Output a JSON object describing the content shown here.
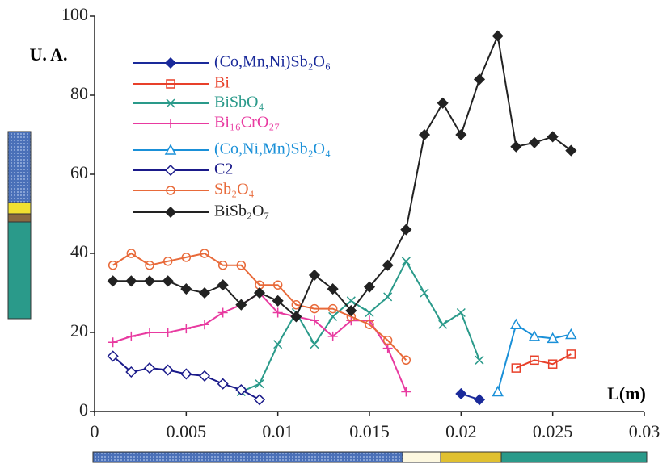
{
  "chart_data": {
    "type": "line",
    "ylabel": "U. A.",
    "xlabel": "L(m)",
    "xlim": [
      0,
      0.03
    ],
    "xticks": [
      0,
      0.005,
      0.01,
      0.015,
      0.02,
      0.025,
      0.03
    ],
    "ylim": [
      0,
      100
    ],
    "yticks": [
      0,
      20,
      40,
      60,
      80,
      100
    ],
    "series": [
      {
        "name": "(Co,Mn,Ni)Sb₂O₆",
        "color": "#1a2a9a",
        "marker": "filled-diamond",
        "x": [
          0.02,
          0.021
        ],
        "values": [
          4.5,
          3
        ]
      },
      {
        "name": "Bi",
        "color": "#e8402a",
        "marker": "square",
        "x": [
          0.023,
          0.024,
          0.025,
          0.026
        ],
        "values": [
          11,
          13,
          12,
          14.5
        ]
      },
      {
        "name": "BiSbO₄",
        "color": "#2a9a8a",
        "marker": "x",
        "x": [
          0.008,
          0.009,
          0.01,
          0.011,
          0.012,
          0.013,
          0.014,
          0.015,
          0.016,
          0.017,
          0.018,
          0.019,
          0.02,
          0.021
        ],
        "values": [
          5,
          7,
          17,
          25,
          17,
          24,
          28,
          25,
          29,
          38,
          30,
          22,
          25,
          13
        ]
      },
      {
        "name": "Bi₁₆CrO₂₇",
        "color": "#e83aa0",
        "marker": "plus",
        "x": [
          0.001,
          0.002,
          0.003,
          0.004,
          0.005,
          0.006,
          0.007,
          0.008,
          0.009,
          0.01,
          0.011,
          0.012,
          0.013,
          0.014,
          0.015,
          0.016,
          0.017
        ],
        "values": [
          17.5,
          19,
          20,
          20,
          21,
          22,
          25,
          27,
          30,
          25,
          24,
          23,
          19,
          23,
          23,
          16,
          5
        ]
      },
      {
        "name": "(Co,Ni,Mn)Sb₂O₄",
        "color": "#1a90d8",
        "marker": "triangle",
        "x": [
          0.022,
          0.023,
          0.024,
          0.025,
          0.026
        ],
        "values": [
          5,
          22,
          19,
          18.5,
          19.5
        ]
      },
      {
        "name": "C2",
        "color": "#1a1a8a",
        "marker": "diamond",
        "x": [
          0.001,
          0.002,
          0.003,
          0.004,
          0.005,
          0.006,
          0.007,
          0.008,
          0.009
        ],
        "values": [
          14,
          10,
          11,
          10.5,
          9.5,
          9,
          7,
          5.5,
          3
        ]
      },
      {
        "name": "Sb₂O₄",
        "color": "#e86a3a",
        "marker": "circle",
        "x": [
          0.001,
          0.002,
          0.003,
          0.004,
          0.005,
          0.006,
          0.007,
          0.008,
          0.009,
          0.01,
          0.011,
          0.012,
          0.013,
          0.014,
          0.015,
          0.016,
          0.017
        ],
        "values": [
          37,
          40,
          37,
          38,
          39,
          40,
          37,
          37,
          32,
          32,
          27,
          26,
          26,
          24,
          22,
          18,
          13
        ]
      },
      {
        "name": "BiSb₂O₇",
        "color": "#222222",
        "marker": "filled-diamond",
        "x": [
          0.001,
          0.002,
          0.003,
          0.004,
          0.005,
          0.006,
          0.007,
          0.008,
          0.009,
          0.01,
          0.011,
          0.012,
          0.013,
          0.014,
          0.015,
          0.016,
          0.017,
          0.018,
          0.019,
          0.02,
          0.021,
          0.022,
          0.023,
          0.024,
          0.025,
          0.026
        ],
        "values": [
          33,
          33,
          33,
          33,
          31,
          30,
          32,
          27,
          30,
          28,
          24,
          34.5,
          31,
          25.5,
          31.5,
          37,
          46,
          70,
          78,
          70,
          84,
          95,
          67,
          68,
          69.5,
          66
        ]
      }
    ]
  }
}
